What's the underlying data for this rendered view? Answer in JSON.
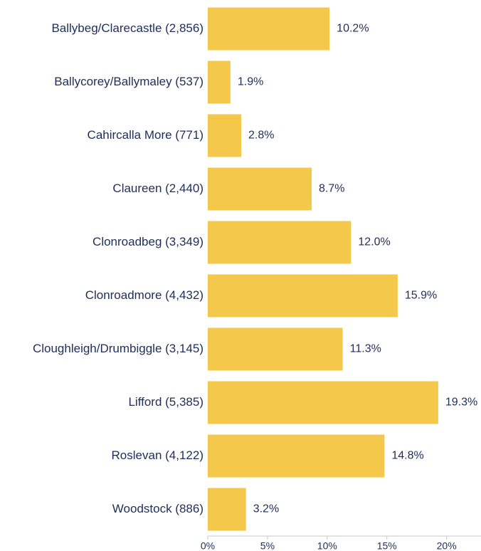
{
  "chart_data": {
    "type": "bar",
    "orientation": "horizontal",
    "categories": [
      "Ballybeg/Clarecastle (2,856)",
      "Ballycorey/Ballymaley (537)",
      "Cahircalla More (771)",
      "Claureen (2,440)",
      "Clonroadbeg (3,349)",
      "Clonroadmore (4,432)",
      "Cloughleigh/Drumbiggle (3,145)",
      "Lifford (5,385)",
      "Roslevan (4,122)",
      "Woodstock (886)"
    ],
    "values": [
      10.2,
      1.9,
      2.8,
      8.7,
      12.0,
      15.9,
      11.3,
      19.3,
      14.8,
      3.2
    ],
    "value_labels": [
      "10.2%",
      "1.9%",
      "2.8%",
      "8.7%",
      "12.0%",
      "15.9%",
      "11.3%",
      "19.3%",
      "14.8%",
      "3.2%"
    ],
    "color": "#f3c84b",
    "xlim": [
      0,
      23
    ],
    "xticks": [
      {
        "value": 0,
        "label": "0%"
      },
      {
        "value": 5,
        "label": "5%"
      },
      {
        "value": 10,
        "label": "10%"
      },
      {
        "value": 15,
        "label": "15%"
      },
      {
        "value": 20,
        "label": "20%"
      }
    ],
    "grid": false
  }
}
